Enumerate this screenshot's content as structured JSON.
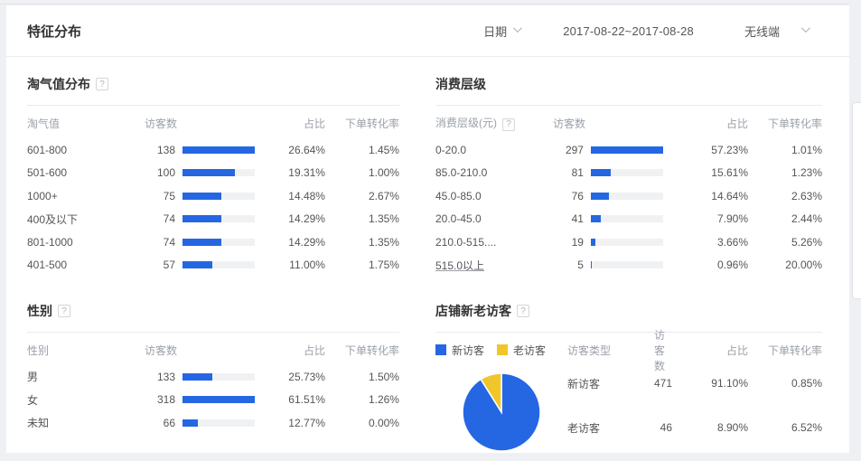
{
  "page": {
    "title": "特征分布"
  },
  "icons": {
    "help_glyph": "?"
  },
  "controls": {
    "date_label": "日期",
    "date_range": "2017-08-22~2017-08-28",
    "terminal_value": "无线端"
  },
  "colors": {
    "bar_blue": "#2567e3",
    "legend_yellow": "#f0c62b",
    "bar_track": "#f0f1f3"
  },
  "panels": [
    {
      "title": "淘气值分布",
      "title_help": true,
      "columns": {
        "label": "淘气值",
        "visitors": "访客数",
        "share": "占比",
        "conversion": "下单转化率"
      },
      "rows": [
        {
          "label": "601-800",
          "visitors": 138,
          "share": "26.64%",
          "conversion": "1.45%"
        },
        {
          "label": "501-600",
          "visitors": 100,
          "share": "19.31%",
          "conversion": "1.00%"
        },
        {
          "label": "1000+",
          "visitors": 75,
          "share": "14.48%",
          "conversion": "2.67%"
        },
        {
          "label": "400及以下",
          "visitors": 74,
          "share": "14.29%",
          "conversion": "1.35%"
        },
        {
          "label": "801-1000",
          "visitors": 74,
          "share": "14.29%",
          "conversion": "1.35%"
        },
        {
          "label": "401-500",
          "visitors": 57,
          "share": "11.00%",
          "conversion": "1.75%"
        }
      ]
    },
    {
      "title": "消费层级",
      "title_help": false,
      "columns": {
        "label": "消费层级(元)",
        "label_help": true,
        "visitors": "访客数",
        "share": "占比",
        "conversion": "下单转化率"
      },
      "rows": [
        {
          "label": "0-20.0",
          "visitors": 297,
          "share": "57.23%",
          "conversion": "1.01%"
        },
        {
          "label": "85.0-210.0",
          "visitors": 81,
          "share": "15.61%",
          "conversion": "1.23%"
        },
        {
          "label": "45.0-85.0",
          "visitors": 76,
          "share": "14.64%",
          "conversion": "2.63%"
        },
        {
          "label": "20.0-45.0",
          "visitors": 41,
          "share": "7.90%",
          "conversion": "2.44%"
        },
        {
          "label": "210.0-515....",
          "visitors": 19,
          "share": "3.66%",
          "conversion": "5.26%"
        },
        {
          "label": "515.0以上",
          "visitors": 5,
          "share": "0.96%",
          "conversion": "20.00%",
          "underline": true
        }
      ]
    },
    {
      "title": "性别",
      "title_help": true,
      "columns": {
        "label": "性别",
        "visitors": "访客数",
        "share": "占比",
        "conversion": "下单转化率"
      },
      "rows": [
        {
          "label": "男",
          "visitors": 133,
          "share": "25.73%",
          "conversion": "1.50%"
        },
        {
          "label": "女",
          "visitors": 318,
          "share": "61.51%",
          "conversion": "1.26%"
        },
        {
          "label": "未知",
          "visitors": 66,
          "share": "12.77%",
          "conversion": "0.00%"
        }
      ]
    },
    {
      "title": "店铺新老访客",
      "title_help": true,
      "legend": [
        {
          "label": "新访客",
          "color": "#2567e3"
        },
        {
          "label": "老访客",
          "color": "#f0c62b"
        }
      ],
      "columns": {
        "label": "访客类型",
        "visitors": "访客数",
        "share": "占比",
        "conversion": "下单转化率"
      },
      "rows": [
        {
          "label": "新访客",
          "visitors": 471,
          "share": "91.10%",
          "conversion": "0.85%"
        },
        {
          "label": "老访客",
          "visitors": 46,
          "share": "8.90%",
          "conversion": "6.52%"
        }
      ]
    }
  ],
  "chart_data": {
    "type": "pie",
    "title": "店铺新老访客",
    "categories": [
      "新访客",
      "老访客"
    ],
    "values": [
      91.1,
      8.9
    ],
    "counts": [
      471,
      46
    ],
    "colors": [
      "#2567e3",
      "#f0c62b"
    ],
    "legend_position": "top-left",
    "start_angle_deg_from_top": 0,
    "direction": "clockwise"
  }
}
